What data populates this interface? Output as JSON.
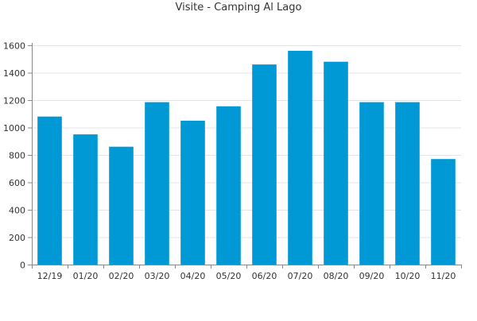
{
  "chart_data": {
    "type": "bar",
    "title": "Visite - Camping Al Lago",
    "xlabel": "",
    "ylabel": "",
    "categories": [
      "12/19",
      "01/20",
      "02/20",
      "03/20",
      "04/20",
      "05/20",
      "06/20",
      "07/20",
      "08/20",
      "09/20",
      "10/20",
      "11/20"
    ],
    "values": [
      1080,
      950,
      860,
      1185,
      1050,
      1155,
      1460,
      1560,
      1480,
      1185,
      1185,
      770
    ],
    "ylim": [
      0,
      1600
    ],
    "yticks": [
      0,
      200,
      400,
      600,
      800,
      1000,
      1200,
      1400,
      1600
    ],
    "grid": true,
    "legend": "none",
    "bar_color": "#0099d6",
    "grid_color": "#e4e4e4",
    "axis_color": "#888888",
    "text_color": "#333333"
  }
}
